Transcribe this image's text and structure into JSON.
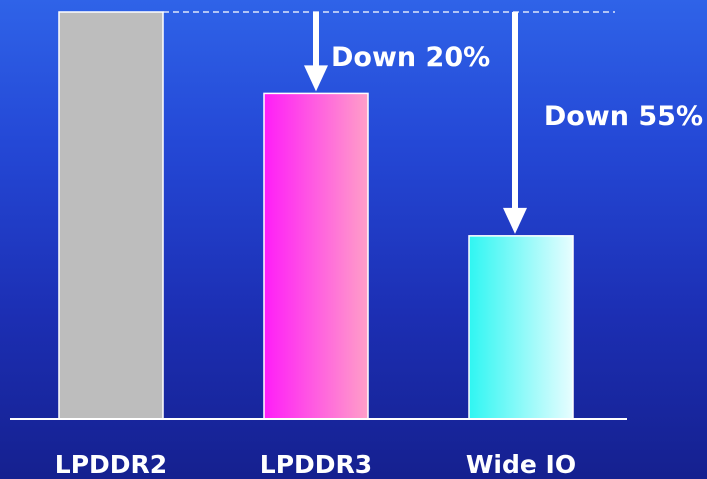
{
  "chart_data": {
    "type": "bar",
    "categories": [
      "LPDDR2",
      "LPDDR3",
      "Wide IO"
    ],
    "values": [
      100,
      80,
      45
    ],
    "ylim": [
      0,
      100
    ],
    "grid": false,
    "legend": "none",
    "bar_colors": {
      "LPDDR2": [
        "#bdbdbd",
        "#bdbdbd"
      ],
      "LPDDR3": [
        "#ff1df8",
        "#ff9fc8"
      ],
      "Wide IO": [
        "#2ff6f2",
        "#e8fdff"
      ]
    },
    "reference_line_value": 100,
    "annotations": [
      {
        "text": "Down 20%",
        "target": "LPDDR3"
      },
      {
        "text": "Down 55%",
        "target": "Wide IO"
      }
    ]
  }
}
